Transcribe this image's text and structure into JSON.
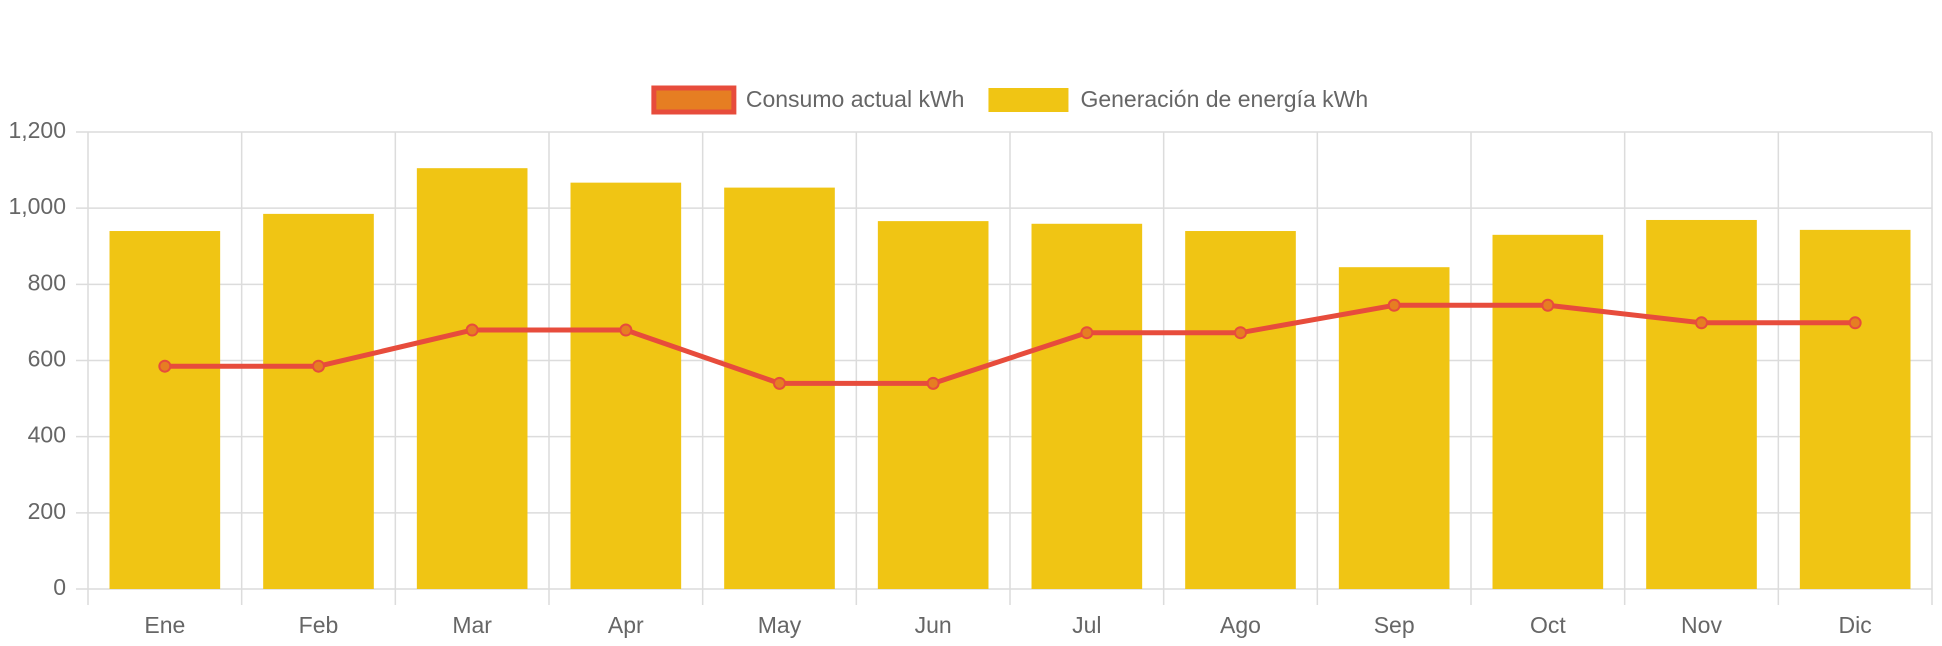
{
  "chart_data": {
    "type": "bar-line",
    "categories": [
      "Ene",
      "Feb",
      "Mar",
      "Apr",
      "May",
      "Jun",
      "Jul",
      "Ago",
      "Sep",
      "Oct",
      "Nov",
      "Dic"
    ],
    "series": [
      {
        "name": "Consumo actual kWh",
        "type": "line",
        "color": "#e74c3c",
        "point_color": "#e67e22",
        "values": [
          585,
          585,
          680,
          680,
          540,
          540,
          673,
          673,
          745,
          745,
          699,
          699
        ]
      },
      {
        "name": "Generación de energía kWh",
        "type": "bar",
        "color": "#f0c514",
        "values": [
          940,
          985,
          1105,
          1067,
          1054,
          966,
          959,
          940,
          845,
          930,
          969,
          943
        ]
      }
    ],
    "ylim": [
      0,
      1200
    ],
    "yticks": [
      0,
      200,
      400,
      600,
      800,
      {
        "value": 1000,
        "label": "1,000"
      },
      {
        "value": 1200,
        "label": "1,200"
      }
    ],
    "grid": true,
    "legend": "top"
  }
}
